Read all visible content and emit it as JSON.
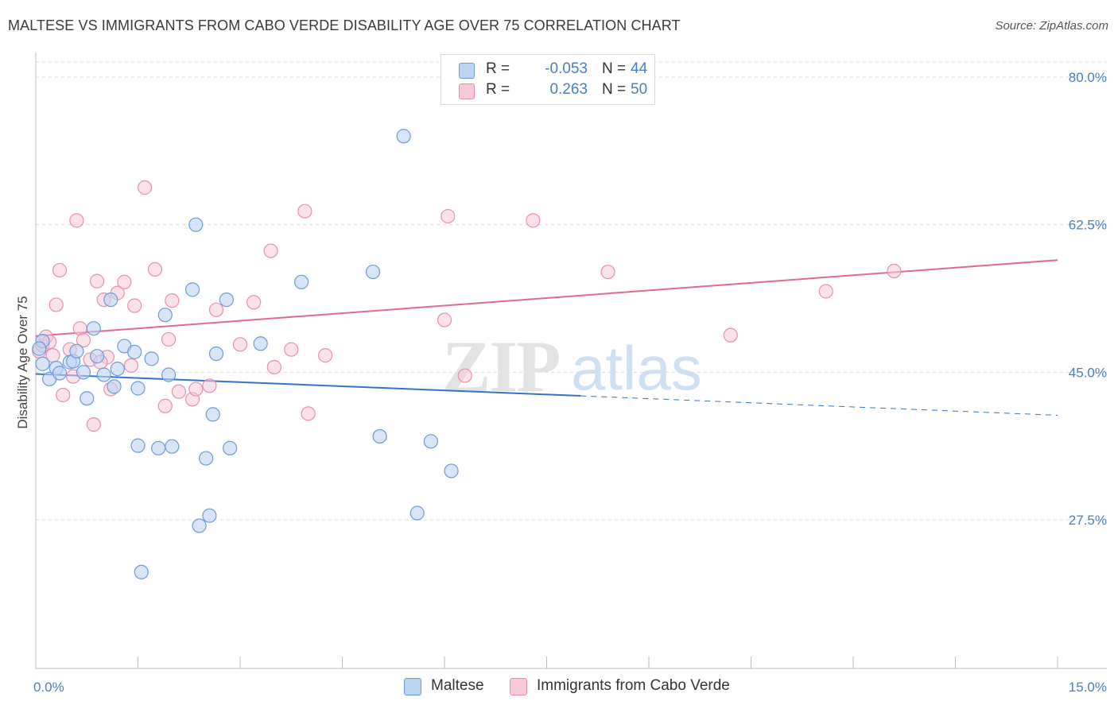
{
  "header": {
    "title": "MALTESE VS IMMIGRANTS FROM CABO VERDE DISABILITY AGE OVER 75 CORRELATION CHART",
    "source": "Source: ZipAtlas.com"
  },
  "watermark": {
    "text_zip": "ZIP",
    "text_atlas": "atlas"
  },
  "colors": {
    "blue_fill": "#bcd4f2",
    "blue_stroke": "#6d9bd8",
    "blue_line": "#3474c8",
    "pink_fill": "#f7c9d8",
    "pink_stroke": "#e591ad",
    "pink_line": "#e06a95",
    "tick_text": "#4a7cc9",
    "grid": "#dddddd"
  },
  "legend": {
    "rows": [
      {
        "r_label": "R =",
        "r_value": "-0.053",
        "n_label": "N =",
        "n_value": "44",
        "color": "#bcd4f2",
        "stroke": "#6d9bd8"
      },
      {
        "r_label": "R =",
        "r_value": "0.263",
        "n_label": "N =",
        "n_value": "50",
        "color": "#f7c9d8",
        "stroke": "#e591ad"
      }
    ]
  },
  "bottom_legend": [
    {
      "label": "Maltese",
      "color": "#bcd4f2",
      "stroke": "#6d9bd8"
    },
    {
      "label": "Immigrants from Cabo Verde",
      "color": "#f7c9d8",
      "stroke": "#e591ad"
    }
  ],
  "chart_data": {
    "type": "scatter",
    "title": "MALTESE VS IMMIGRANTS FROM CABO VERDE DISABILITY AGE OVER 75 CORRELATION CHART",
    "xlabel": "",
    "ylabel": "Disability Age Over 75",
    "xlim": [
      0,
      15
    ],
    "ylim": [
      12,
      85
    ],
    "x_tick_labels": [
      {
        "value": 0,
        "label": "0.0%"
      },
      {
        "value": 15,
        "label": "15.0%"
      }
    ],
    "y_tick_labels": [
      {
        "value": 80,
        "label": "80.0%"
      },
      {
        "value": 62.5,
        "label": "62.5%"
      },
      {
        "value": 45,
        "label": "45.0%"
      },
      {
        "value": 27.5,
        "label": "27.5%"
      }
    ],
    "x_minor_ticks": [
      0,
      1.5,
      3,
      4.5,
      6,
      7.5,
      9,
      10.5,
      12,
      13.5,
      15
    ],
    "grid": true,
    "legend_position": "top-center",
    "series": [
      {
        "name": "Maltese",
        "r": -0.053,
        "n": 44,
        "trend": {
          "x_start": 0,
          "y_start": 44.8,
          "x_solid_end": 8.0,
          "y_solid_end": 42.2,
          "x_end": 15,
          "y_end": 39.9
        },
        "points": [
          [
            0.1,
            48.7
          ],
          [
            0.1,
            46.0
          ],
          [
            0.2,
            44.2
          ],
          [
            0.3,
            45.5
          ],
          [
            0.35,
            44.9
          ],
          [
            0.5,
            46.2
          ],
          [
            0.55,
            46.3
          ],
          [
            0.6,
            47.5
          ],
          [
            0.7,
            45.0
          ],
          [
            0.75,
            41.9
          ],
          [
            0.85,
            50.2
          ],
          [
            0.9,
            46.9
          ],
          [
            1.0,
            44.7
          ],
          [
            1.1,
            53.6
          ],
          [
            1.15,
            43.3
          ],
          [
            1.2,
            45.4
          ],
          [
            1.3,
            48.1
          ],
          [
            1.45,
            47.4
          ],
          [
            1.5,
            43.1
          ],
          [
            1.5,
            36.3
          ],
          [
            1.55,
            21.3
          ],
          [
            1.7,
            46.6
          ],
          [
            1.8,
            36.0
          ],
          [
            1.9,
            51.8
          ],
          [
            1.95,
            44.7
          ],
          [
            2.0,
            36.2
          ],
          [
            2.3,
            54.8
          ],
          [
            2.35,
            62.5
          ],
          [
            2.5,
            34.8
          ],
          [
            2.55,
            28.0
          ],
          [
            2.6,
            40.0
          ],
          [
            2.65,
            47.2
          ],
          [
            2.8,
            53.6
          ],
          [
            2.85,
            36.0
          ],
          [
            3.3,
            48.4
          ],
          [
            3.9,
            55.7
          ],
          [
            4.95,
            56.9
          ],
          [
            5.05,
            37.4
          ],
          [
            5.4,
            73.0
          ],
          [
            5.6,
            28.3
          ],
          [
            5.8,
            36.8
          ],
          [
            6.1,
            33.3
          ],
          [
            2.4,
            26.8
          ],
          [
            0.05,
            47.8
          ]
        ]
      },
      {
        "name": "Immigrants from Cabo Verde",
        "r": 0.263,
        "n": 50,
        "trend": {
          "x_start": 0,
          "y_start": 49.3,
          "x_end": 15,
          "y_end": 58.3
        },
        "points": [
          [
            0.05,
            47.5
          ],
          [
            0.1,
            48.2
          ],
          [
            0.15,
            49.2
          ],
          [
            0.2,
            48.6
          ],
          [
            0.3,
            53.0
          ],
          [
            0.35,
            57.1
          ],
          [
            0.4,
            42.3
          ],
          [
            0.5,
            47.7
          ],
          [
            0.55,
            44.5
          ],
          [
            0.6,
            63.0
          ],
          [
            0.65,
            50.2
          ],
          [
            0.7,
            48.8
          ],
          [
            0.8,
            46.5
          ],
          [
            0.85,
            38.8
          ],
          [
            0.9,
            55.8
          ],
          [
            1.0,
            53.6
          ],
          [
            1.05,
            46.8
          ],
          [
            1.1,
            43.0
          ],
          [
            1.2,
            54.4
          ],
          [
            1.3,
            55.7
          ],
          [
            1.45,
            52.9
          ],
          [
            1.6,
            66.9
          ],
          [
            1.75,
            57.2
          ],
          [
            1.9,
            41.0
          ],
          [
            1.95,
            48.9
          ],
          [
            2.0,
            53.5
          ],
          [
            2.1,
            42.7
          ],
          [
            2.3,
            41.8
          ],
          [
            2.35,
            43.0
          ],
          [
            2.55,
            43.4
          ],
          [
            2.65,
            52.4
          ],
          [
            3.0,
            48.3
          ],
          [
            3.2,
            53.3
          ],
          [
            3.45,
            59.4
          ],
          [
            3.5,
            45.6
          ],
          [
            3.75,
            47.7
          ],
          [
            3.95,
            64.1
          ],
          [
            4.0,
            40.1
          ],
          [
            4.25,
            47.0
          ],
          [
            6.0,
            51.2
          ],
          [
            6.05,
            63.5
          ],
          [
            6.3,
            44.6
          ],
          [
            7.3,
            63.0
          ],
          [
            8.4,
            56.9
          ],
          [
            10.2,
            49.4
          ],
          [
            11.6,
            54.6
          ],
          [
            12.6,
            57.0
          ],
          [
            0.25,
            47.0
          ],
          [
            1.4,
            45.8
          ],
          [
            0.95,
            46.2
          ]
        ]
      }
    ]
  }
}
